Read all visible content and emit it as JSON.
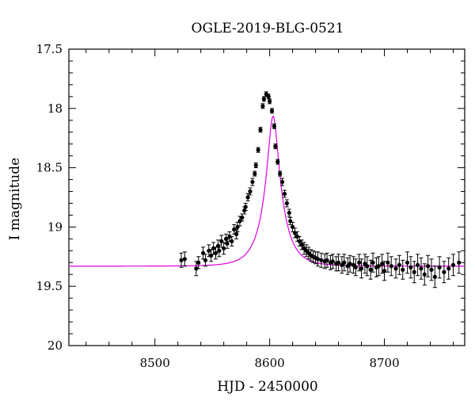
{
  "chart_data": {
    "type": "scatter",
    "title": "OGLE-2019-BLG-0521",
    "xlabel": "HJD - 2450000",
    "ylabel": "I magnitude",
    "xlim": [
      8425,
      8770
    ],
    "ylim": [
      17.5,
      20.0
    ],
    "y_inverted": true,
    "x_ticks": [
      "8500",
      "8600",
      "8700"
    ],
    "x_tick_values": [
      8500,
      8600,
      8700
    ],
    "y_ticks": [
      "17.5",
      "18",
      "18.5",
      "19",
      "19.5",
      "20"
    ],
    "y_tick_values": [
      17.5,
      18.0,
      18.5,
      19.0,
      19.5,
      20.0
    ],
    "colors": {
      "points": "#000000",
      "model": "#e000e0"
    },
    "model_curve": {
      "description_type": "point-lens model",
      "t0": 8603,
      "u0": 0.26,
      "tE": 16,
      "baseline": 19.33,
      "blend_fraction": 0.75
    },
    "series": [
      {
        "kind": "data-with-errors",
        "x": [
          8523,
          8526,
          8536,
          8538,
          8542,
          8544,
          8547,
          8549,
          8551,
          8553,
          8555,
          8556,
          8558,
          8560,
          8562,
          8563,
          8565,
          8567,
          8569,
          8571,
          8572,
          8574,
          8576,
          8578,
          8579,
          8581,
          8583,
          8585,
          8587,
          8588,
          8590,
          8592,
          8594,
          8595,
          8597,
          8599,
          8600,
          8602,
          8604,
          8605,
          8607,
          8609,
          8611,
          8613,
          8615,
          8617,
          8618,
          8620,
          8622,
          8624,
          8626,
          8628,
          8630,
          8632,
          8634,
          8636,
          8638,
          8640,
          8642,
          8645,
          8648,
          8650,
          8653,
          8655,
          8658,
          8660,
          8663,
          8665,
          8668,
          8670,
          8673,
          8675,
          8678,
          8680,
          8683,
          8685,
          8688,
          8690,
          8693,
          8695,
          8698,
          8700,
          8703,
          8706,
          8710,
          8713,
          8716,
          8720,
          8723,
          8726,
          8729,
          8732,
          8735,
          8738,
          8741,
          8744,
          8748,
          8752,
          8756,
          8760,
          8765
        ],
        "y": [
          19.28,
          19.27,
          19.35,
          19.3,
          19.22,
          19.28,
          19.2,
          19.24,
          19.18,
          19.22,
          19.16,
          19.2,
          19.12,
          19.18,
          19.1,
          19.14,
          19.08,
          19.12,
          19.02,
          19.06,
          19.0,
          18.95,
          18.92,
          18.86,
          18.83,
          18.75,
          18.7,
          18.62,
          18.55,
          18.48,
          18.35,
          18.18,
          17.98,
          17.92,
          17.88,
          17.9,
          17.94,
          18.02,
          18.15,
          18.32,
          18.45,
          18.55,
          18.62,
          18.72,
          18.8,
          18.88,
          18.95,
          19.0,
          19.05,
          19.08,
          19.12,
          19.15,
          19.18,
          19.2,
          19.22,
          19.24,
          19.25,
          19.26,
          19.27,
          19.28,
          19.29,
          19.28,
          19.3,
          19.29,
          19.31,
          19.3,
          19.32,
          19.3,
          19.33,
          19.31,
          19.32,
          19.34,
          19.3,
          19.35,
          19.31,
          19.33,
          19.36,
          19.3,
          19.34,
          19.33,
          19.31,
          19.37,
          19.3,
          19.33,
          19.35,
          19.32,
          19.36,
          19.3,
          19.34,
          19.38,
          19.32,
          19.35,
          19.4,
          19.33,
          19.36,
          19.42,
          19.34,
          19.38,
          19.35,
          19.32,
          19.3
        ],
        "err": [
          0.06,
          0.06,
          0.06,
          0.05,
          0.05,
          0.05,
          0.05,
          0.05,
          0.05,
          0.05,
          0.05,
          0.05,
          0.05,
          0.05,
          0.04,
          0.04,
          0.04,
          0.04,
          0.04,
          0.04,
          0.04,
          0.04,
          0.03,
          0.03,
          0.03,
          0.03,
          0.03,
          0.03,
          0.02,
          0.02,
          0.02,
          0.02,
          0.02,
          0.02,
          0.02,
          0.02,
          0.02,
          0.02,
          0.02,
          0.02,
          0.02,
          0.02,
          0.03,
          0.03,
          0.03,
          0.03,
          0.03,
          0.04,
          0.04,
          0.04,
          0.04,
          0.04,
          0.05,
          0.05,
          0.05,
          0.05,
          0.05,
          0.05,
          0.06,
          0.06,
          0.06,
          0.06,
          0.06,
          0.06,
          0.06,
          0.07,
          0.07,
          0.07,
          0.07,
          0.07,
          0.07,
          0.07,
          0.07,
          0.08,
          0.08,
          0.08,
          0.08,
          0.08,
          0.08,
          0.08,
          0.08,
          0.08,
          0.08,
          0.08,
          0.08,
          0.08,
          0.08,
          0.09,
          0.09,
          0.09,
          0.09,
          0.09,
          0.09,
          0.09,
          0.09,
          0.09,
          0.09,
          0.09,
          0.09,
          0.09,
          0.09
        ]
      }
    ]
  }
}
